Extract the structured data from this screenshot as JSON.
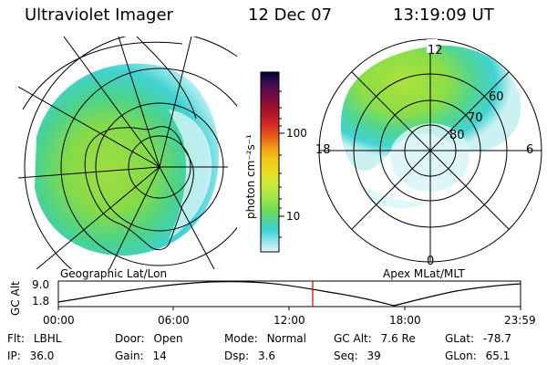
{
  "header": {
    "title": "Ultraviolet Imager",
    "date": "12 Dec 07",
    "time": "13:19:09 UT"
  },
  "geo_panel": {
    "caption": "Geographic Lat/Lon"
  },
  "apex_panel": {
    "caption": "Apex MLat/MLT",
    "mlt_labels": [
      "12",
      "18",
      "6",
      "0"
    ],
    "lat_labels": [
      "60",
      "70",
      "80"
    ]
  },
  "colorbar": {
    "unit_label": "photon cm⁻²s⁻¹",
    "tick_labels": [
      "100",
      "10"
    ],
    "colors": [
      "#000033",
      "#1b0b3f",
      "#3d0c52",
      "#6b0b48",
      "#a00f2c",
      "#d0202a",
      "#ec5a1a",
      "#f39a16",
      "#f3c414",
      "#e8e024",
      "#c8ea3a",
      "#9be649",
      "#6edc55",
      "#4fd39b",
      "#3bd2d6",
      "#8ee3ea",
      "#d6f4f8"
    ]
  },
  "altitude_plot": {
    "y_axis_label": "GC Alt",
    "y_ticks": [
      "9.0",
      "1.8"
    ],
    "x_ticks": [
      "00:00",
      "06:00",
      "12:00",
      "18:00",
      "23:59"
    ],
    "current_time_marker_color": "#cc0000"
  },
  "status": {
    "row1": [
      {
        "key": "Flt:",
        "value": "LBHL"
      },
      {
        "key": "Door:",
        "value": "Open"
      },
      {
        "key": "Mode:",
        "value": "Normal"
      },
      {
        "key": "GC Alt:",
        "value": "7.6 Re"
      },
      {
        "key": "GLat:",
        "value": "-78.7"
      }
    ],
    "row2": [
      {
        "key": "IP:",
        "value": "36.0"
      },
      {
        "key": "Gain:",
        "value": "14"
      },
      {
        "key": "Dsp:",
        "value": "3.6"
      },
      {
        "key": "Seq:",
        "value": "39"
      },
      {
        "key": "GLon:",
        "value": "65.1"
      }
    ]
  }
}
